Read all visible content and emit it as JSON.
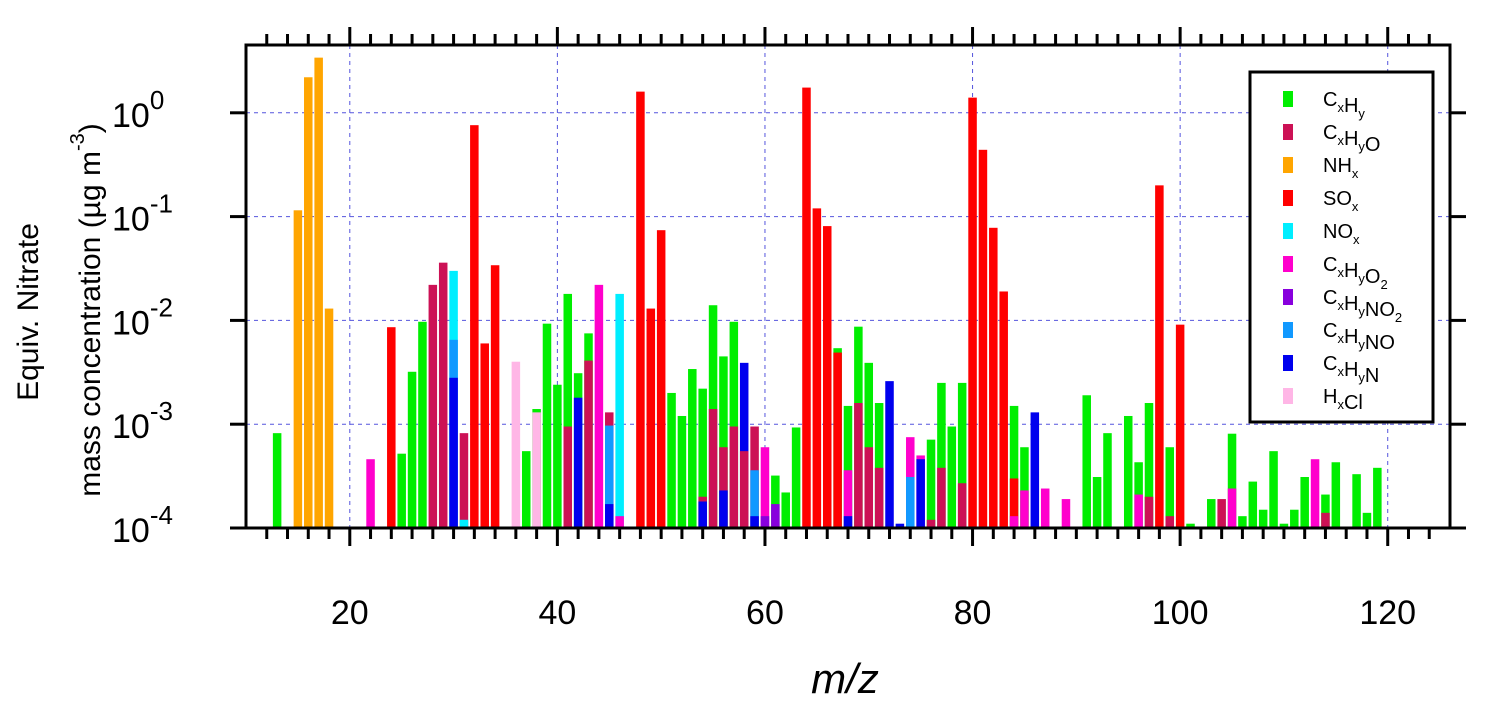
{
  "chart_data": {
    "type": "bar",
    "xlabel": "m/z",
    "ylabel_line1": "Equiv. Nitrate",
    "ylabel_line2": "mass concentration (µg m",
    "ylabel_exp": "-3",
    "ylabel_close": ")",
    "xlim": [
      10,
      126
    ],
    "ylim": [
      0.0001,
      4.5
    ],
    "yscale": "log",
    "grid": true,
    "legend_position": "top-right",
    "x_ticks": [
      {
        "value": 20,
        "label": "20"
      },
      {
        "value": 40,
        "label": "40"
      },
      {
        "value": 60,
        "label": "60"
      },
      {
        "value": 80,
        "label": "80"
      },
      {
        "value": 100,
        "label": "100"
      },
      {
        "value": 120,
        "label": "120"
      }
    ],
    "y_ticks": [
      {
        "value": 0.0001,
        "base": "10",
        "exp": "-4"
      },
      {
        "value": 0.001,
        "base": "10",
        "exp": "-3"
      },
      {
        "value": 0.01,
        "base": "10",
        "exp": "-2"
      },
      {
        "value": 0.1,
        "base": "10",
        "exp": "-1"
      },
      {
        "value": 1,
        "base": "10",
        "exp": "0"
      }
    ],
    "series": [
      {
        "name": "CxHy",
        "parts": [
          [
            "C",
            "x"
          ],
          [
            "H",
            "y"
          ]
        ],
        "color": "#00ee00"
      },
      {
        "name": "CxHyO",
        "parts": [
          [
            "C",
            "x"
          ],
          [
            "H",
            "y"
          ],
          [
            "O",
            ""
          ]
        ],
        "color": "#cc1155"
      },
      {
        "name": "NHx",
        "parts": [
          [
            "NH",
            "x"
          ]
        ],
        "color": "#ffa500"
      },
      {
        "name": "SOx",
        "parts": [
          [
            "SO",
            "x"
          ]
        ],
        "color": "#ff0000"
      },
      {
        "name": "NOx",
        "parts": [
          [
            "NO",
            "x"
          ]
        ],
        "color": "#00eeff"
      },
      {
        "name": "CxHyO2",
        "parts": [
          [
            "C",
            "x"
          ],
          [
            "H",
            "y"
          ],
          [
            "O",
            "2"
          ]
        ],
        "color": "#ff00cc"
      },
      {
        "name": "CxHyNO2",
        "parts": [
          [
            "C",
            "x"
          ],
          [
            "H",
            "y"
          ],
          [
            "NO",
            "2"
          ]
        ],
        "color": "#8800dd"
      },
      {
        "name": "CxHyNO",
        "parts": [
          [
            "C",
            "x"
          ],
          [
            "H",
            "y"
          ],
          [
            "NO",
            ""
          ]
        ],
        "color": "#1199ff"
      },
      {
        "name": "CxHyN",
        "parts": [
          [
            "C",
            "x"
          ],
          [
            "H",
            "y"
          ],
          [
            "N",
            ""
          ]
        ],
        "color": "#0000ee"
      },
      {
        "name": "HxCl",
        "parts": [
          [
            "H",
            "x"
          ],
          [
            "Cl",
            ""
          ]
        ],
        "color": "#ffb6e6"
      }
    ],
    "bars": [
      {
        "mz": 13,
        "values": {
          "CxHy": 0.00082
        }
      },
      {
        "mz": 15,
        "values": {
          "NHx": 0.115
        }
      },
      {
        "mz": 16,
        "values": {
          "NHx": 2.2
        }
      },
      {
        "mz": 17,
        "values": {
          "NHx": 3.4
        }
      },
      {
        "mz": 18,
        "values": {
          "NHx": 0.013
        }
      },
      {
        "mz": 22,
        "values": {
          "CxHyO2": 0.00046
        }
      },
      {
        "mz": 24,
        "values": {
          "SOx": 0.0086
        }
      },
      {
        "mz": 25,
        "values": {
          "CxHy": 0.00052
        }
      },
      {
        "mz": 26,
        "values": {
          "CxHy": 0.0032
        }
      },
      {
        "mz": 27,
        "values": {
          "CxHy": 0.0097
        }
      },
      {
        "mz": 28,
        "values": {
          "CxHyO": 0.022
        }
      },
      {
        "mz": 29,
        "values": {
          "CxHyO": 0.036
        }
      },
      {
        "mz": 30,
        "values": {
          "NOx": 0.03,
          "CxHyNO": 0.0065,
          "CxHyN": 0.0028
        }
      },
      {
        "mz": 31,
        "values": {
          "CxHyO": 0.00082,
          "NOx": 0.00012
        }
      },
      {
        "mz": 32,
        "values": {
          "SOx": 0.76
        }
      },
      {
        "mz": 33,
        "values": {
          "SOx": 0.006
        }
      },
      {
        "mz": 34,
        "values": {
          "SOx": 0.034
        }
      },
      {
        "mz": 36,
        "values": {
          "HxCl": 0.004
        }
      },
      {
        "mz": 37,
        "values": {
          "CxHy": 0.00055
        }
      },
      {
        "mz": 38,
        "values": {
          "CxHy": 0.0014,
          "HxCl": 0.0013
        }
      },
      {
        "mz": 39,
        "values": {
          "CxHy": 0.0093
        }
      },
      {
        "mz": 40,
        "values": {
          "CxHy": 0.0024
        }
      },
      {
        "mz": 41,
        "values": {
          "CxHy": 0.018,
          "CxHyO": 0.00095
        }
      },
      {
        "mz": 42,
        "values": {
          "CxHy": 0.0031,
          "CxHyN": 0.0018
        }
      },
      {
        "mz": 43,
        "values": {
          "CxHy": 0.0075,
          "CxHyO": 0.0041
        }
      },
      {
        "mz": 44,
        "values": {
          "CxHyO2": 0.022
        }
      },
      {
        "mz": 45,
        "values": {
          "CxHyO": 0.0013,
          "CxHyNO": 0.00097,
          "CxHyN": 0.00017
        }
      },
      {
        "mz": 46,
        "values": {
          "NOx": 0.018,
          "CxHyO2": 0.00013
        }
      },
      {
        "mz": 48,
        "values": {
          "SOx": 1.6
        }
      },
      {
        "mz": 49,
        "values": {
          "SOx": 0.013
        }
      },
      {
        "mz": 50,
        "values": {
          "SOx": 0.074
        }
      },
      {
        "mz": 51,
        "values": {
          "CxHy": 0.002
        }
      },
      {
        "mz": 52,
        "values": {
          "CxHy": 0.0012
        }
      },
      {
        "mz": 53,
        "values": {
          "CxHy": 0.0034
        }
      },
      {
        "mz": 54,
        "values": {
          "CxHy": 0.0022,
          "CxHyO": 0.0002,
          "CxHyN": 0.00018
        }
      },
      {
        "mz": 55,
        "values": {
          "CxHy": 0.014,
          "CxHyO": 0.0014
        }
      },
      {
        "mz": 56,
        "values": {
          "CxHy": 0.0045,
          "CxHyO": 0.0006,
          "CxHyN": 0.00023
        }
      },
      {
        "mz": 57,
        "values": {
          "CxHy": 0.0097,
          "CxHyO": 0.00095
        }
      },
      {
        "mz": 58,
        "values": {
          "CxHyN": 0.0039,
          "CxHyO": 0.00055
        }
      },
      {
        "mz": 59,
        "values": {
          "CxHyO": 0.00095,
          "CxHyNO": 0.00036,
          "CxHyN": 0.00013
        }
      },
      {
        "mz": 60,
        "values": {
          "CxHyO2": 0.0006,
          "CxHyNO2": 0.00013
        }
      },
      {
        "mz": 61,
        "values": {
          "CxHy": 0.00032,
          "CxHyNO2": 0.00017
        }
      },
      {
        "mz": 62,
        "values": {
          "CxHy": 0.00022
        }
      },
      {
        "mz": 63,
        "values": {
          "CxHy": 0.00093
        }
      },
      {
        "mz": 64,
        "values": {
          "SOx": 1.75
        }
      },
      {
        "mz": 65,
        "values": {
          "SOx": 0.12
        }
      },
      {
        "mz": 66,
        "values": {
          "SOx": 0.081
        }
      },
      {
        "mz": 67,
        "values": {
          "CxHy": 0.0054,
          "SOx": 0.0049
        }
      },
      {
        "mz": 68,
        "values": {
          "CxHy": 0.0015,
          "CxHyO2": 0.00036,
          "CxHyN": 0.00013
        }
      },
      {
        "mz": 69,
        "values": {
          "CxHy": 0.0087,
          "CxHyO": 0.0016
        }
      },
      {
        "mz": 70,
        "values": {
          "CxHy": 0.0039,
          "CxHyO": 0.0006
        }
      },
      {
        "mz": 71,
        "values": {
          "CxHy": 0.0016,
          "CxHyO": 0.00038
        }
      },
      {
        "mz": 72,
        "values": {
          "CxHyN": 0.0026
        }
      },
      {
        "mz": 73,
        "values": {
          "CxHyN": 0.00011
        }
      },
      {
        "mz": 74,
        "values": {
          "CxHyO2": 0.00075,
          "CxHyNO": 0.00031
        }
      },
      {
        "mz": 75,
        "values": {
          "CxHyO2": 0.0005,
          "CxHyN": 0.00046
        }
      },
      {
        "mz": 76,
        "values": {
          "CxHy": 0.00071,
          "CxHyO": 0.00012
        }
      },
      {
        "mz": 77,
        "values": {
          "CxHy": 0.0025,
          "CxHyO": 0.00038
        }
      },
      {
        "mz": 78,
        "values": {
          "CxHy": 0.00095
        }
      },
      {
        "mz": 79,
        "values": {
          "CxHy": 0.0025,
          "CxHyO": 0.00027
        }
      },
      {
        "mz": 80,
        "values": {
          "SOx": 1.4
        }
      },
      {
        "mz": 81,
        "values": {
          "SOx": 0.44
        }
      },
      {
        "mz": 82,
        "values": {
          "SOx": 0.078
        }
      },
      {
        "mz": 83,
        "values": {
          "SOx": 0.019
        }
      },
      {
        "mz": 84,
        "values": {
          "CxHy": 0.0015,
          "SOx": 0.0003,
          "CxHyO2": 0.00013
        }
      },
      {
        "mz": 85,
        "values": {
          "CxHy": 0.0006,
          "CxHyO2": 0.00023
        }
      },
      {
        "mz": 86,
        "values": {
          "CxHyN": 0.0013
        }
      },
      {
        "mz": 87,
        "values": {
          "CxHyO2": 0.00024
        }
      },
      {
        "mz": 89,
        "values": {
          "CxHyO2": 0.00019
        }
      },
      {
        "mz": 91,
        "values": {
          "CxHy": 0.0019
        }
      },
      {
        "mz": 92,
        "values": {
          "CxHy": 0.00031
        }
      },
      {
        "mz": 93,
        "values": {
          "CxHy": 0.00082
        }
      },
      {
        "mz": 95,
        "values": {
          "CxHy": 0.0012
        }
      },
      {
        "mz": 96,
        "values": {
          "CxHy": 0.00043,
          "CxHyO2": 0.00021
        }
      },
      {
        "mz": 97,
        "values": {
          "CxHy": 0.0016,
          "CxHyO": 0.0002
        }
      },
      {
        "mz": 98,
        "values": {
          "SOx": 0.2
        }
      },
      {
        "mz": 99,
        "values": {
          "CxHy": 0.0006,
          "CxHyO": 0.00013
        }
      },
      {
        "mz": 100,
        "values": {
          "SOx": 0.0091
        }
      },
      {
        "mz": 101,
        "values": {
          "CxHy": 0.00011
        }
      },
      {
        "mz": 103,
        "values": {
          "CxHy": 0.00019
        }
      },
      {
        "mz": 104,
        "values": {
          "CxHyO": 0.00019
        }
      },
      {
        "mz": 105,
        "values": {
          "CxHy": 0.00081,
          "CxHyO2": 0.00024
        }
      },
      {
        "mz": 106,
        "values": {
          "CxHy": 0.00013
        }
      },
      {
        "mz": 107,
        "values": {
          "CxHy": 0.00028
        }
      },
      {
        "mz": 108,
        "values": {
          "CxHy": 0.00015
        }
      },
      {
        "mz": 109,
        "values": {
          "CxHy": 0.00055
        }
      },
      {
        "mz": 110,
        "values": {
          "CxHy": 0.00011
        }
      },
      {
        "mz": 111,
        "values": {
          "CxHy": 0.00015
        }
      },
      {
        "mz": 112,
        "values": {
          "CxHy": 0.00031
        }
      },
      {
        "mz": 113,
        "values": {
          "CxHyO2": 0.00046
        }
      },
      {
        "mz": 114,
        "values": {
          "CxHy": 0.00021,
          "CxHyO": 0.00014
        }
      },
      {
        "mz": 115,
        "values": {
          "CxHy": 0.00043
        }
      },
      {
        "mz": 117,
        "values": {
          "CxHy": 0.00033
        }
      },
      {
        "mz": 118,
        "values": {
          "CxHy": 0.00014
        }
      },
      {
        "mz": 119,
        "values": {
          "CxHy": 0.00038
        }
      }
    ]
  }
}
